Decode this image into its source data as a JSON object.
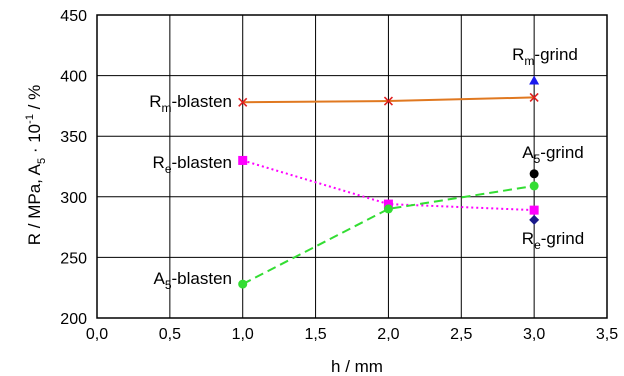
{
  "chart_data": {
    "type": "line",
    "xlabel": "h / mm",
    "ylabel": {
      "base": "R / MPa, A",
      "sub": "5",
      "mid": " · 10",
      "sup": "-1",
      "tail": " / %"
    },
    "xlim": [
      0.0,
      3.5
    ],
    "ylim": [
      200,
      450
    ],
    "xticks": [
      "0,0",
      "0,5",
      "1,0",
      "1,5",
      "2,0",
      "2,5",
      "3,0",
      "3,5"
    ],
    "yticks": [
      "200",
      "250",
      "300",
      "350",
      "400",
      "450"
    ],
    "grid": true,
    "colors": {
      "rm": "#e07820",
      "rm_marker": "#e02020",
      "re": "#ff00ff",
      "a5": "#33dd33",
      "grind_rm": "#1a1aee",
      "grind_re": "#1a1a8a",
      "grind_a5": "#000000"
    },
    "series": [
      {
        "key": "rm",
        "x": [
          1.0,
          2.0,
          3.0
        ],
        "y": [
          378,
          379,
          382
        ],
        "marker": "x",
        "line": "solid"
      },
      {
        "key": "re",
        "x": [
          1.0,
          2.0,
          3.0
        ],
        "y": [
          330,
          294,
          289
        ],
        "marker": "square",
        "line": "dotted"
      },
      {
        "key": "a5",
        "x": [
          1.0,
          2.0,
          3.0
        ],
        "y": [
          228,
          290,
          309
        ],
        "marker": "circle",
        "line": "dashed"
      }
    ],
    "grind_points": [
      {
        "key": "grind_rm",
        "x": 3.0,
        "y": 396,
        "marker": "triangle"
      },
      {
        "key": "grind_a5",
        "x": 3.0,
        "y": 319,
        "marker": "circle"
      },
      {
        "key": "grind_re",
        "x": 3.0,
        "y": 281,
        "marker": "diamond"
      }
    ],
    "annotations": [
      {
        "key": "rm_grind",
        "base": "R",
        "sub": "m",
        "tail": "-grind"
      },
      {
        "key": "rm_blasten",
        "base": "R",
        "sub": "m",
        "tail": "-blasten"
      },
      {
        "key": "re_blasten",
        "base": "R",
        "sub": "e",
        "tail": "-blasten"
      },
      {
        "key": "a5_grind",
        "base": "A",
        "sub": "5",
        "tail": "-grind"
      },
      {
        "key": "re_grind",
        "base": "R",
        "sub": "e",
        "tail": "-grind"
      },
      {
        "key": "a5_blasten",
        "base": "A",
        "sub": "5",
        "tail": "-blasten"
      }
    ]
  }
}
